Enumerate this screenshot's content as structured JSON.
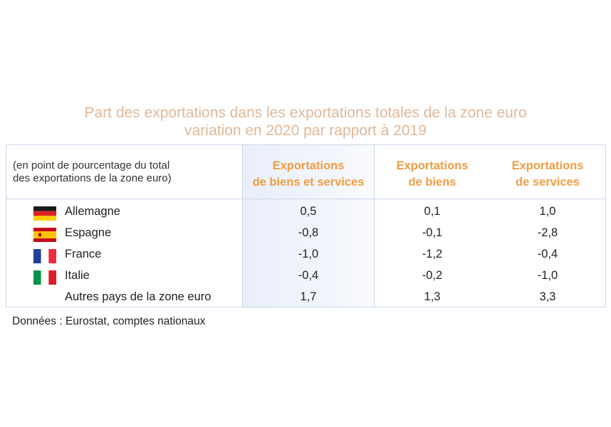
{
  "chart_data": {
    "type": "table",
    "title_lines": [
      "Part des exportations dans les exportations totales de la zone euro",
      "variation en 2020 par rapport à 2019"
    ],
    "unit_note_lines": [
      "(en point de pourcentage du total",
      "des exportations de la zone euro)"
    ],
    "columns": [
      {
        "lines": [
          "Exportations",
          "de biens et services"
        ]
      },
      {
        "lines": [
          "Exportations",
          "de biens"
        ]
      },
      {
        "lines": [
          "Exportations",
          "de services"
        ]
      }
    ],
    "rows": [
      {
        "label": "Allemagne",
        "flag": "germany-flag",
        "values": [
          "0,5",
          "0,1",
          "1,0"
        ]
      },
      {
        "label": "Espagne",
        "flag": "spain-flag",
        "values": [
          "-0,8",
          "-0,1",
          "-2,8"
        ]
      },
      {
        "label": "France",
        "flag": "france-flag",
        "values": [
          "-1,0",
          "-1,2",
          "-0,4"
        ]
      },
      {
        "label": "Italie",
        "flag": "italy-flag",
        "values": [
          "-0,4",
          "-0,2",
          "-1,0"
        ]
      },
      {
        "label": "Autres pays de la zone euro",
        "flag": "",
        "values": [
          "1,7",
          "1,3",
          "3,3"
        ]
      }
    ],
    "source": "Données : Eurostat, comptes nationaux",
    "colors": {
      "title": "#e0b89a",
      "column_header": "#ef9d44",
      "border": "#c9d6ec",
      "highlight": "#e9eef9"
    }
  }
}
